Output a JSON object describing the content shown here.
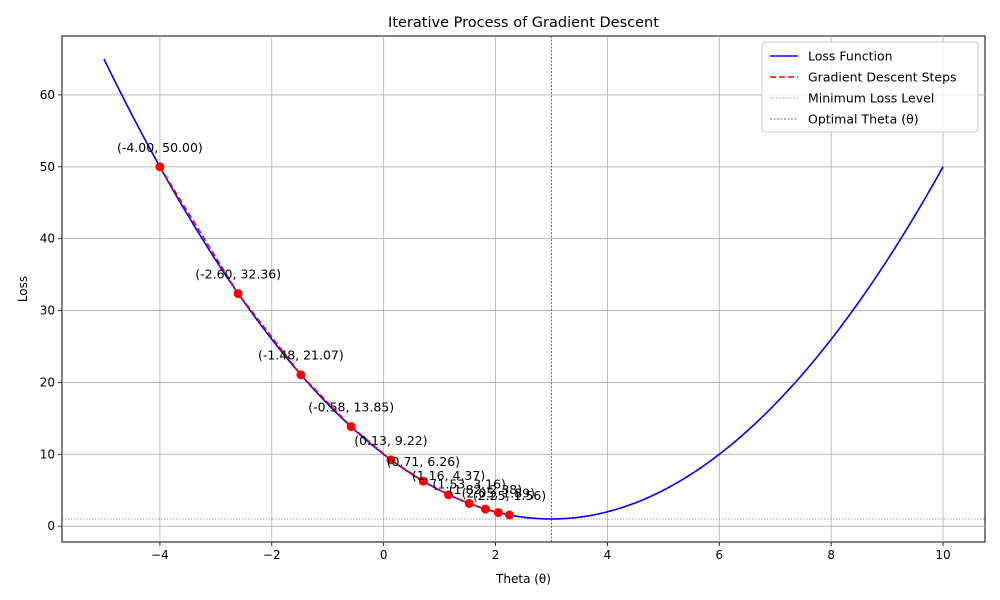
{
  "chart_data": {
    "type": "line",
    "title": "Iterative Process of Gradient Descent",
    "xlabel": "Theta (θ)",
    "ylabel": "Loss",
    "xlim": [
      -5.75,
      10.75
    ],
    "ylim": [
      -2.2,
      68.2
    ],
    "xticks": [
      -4,
      -2,
      0,
      2,
      4,
      6,
      8,
      10
    ],
    "yticks": [
      0,
      10,
      20,
      30,
      40,
      50,
      60
    ],
    "grid": true,
    "legend_position": "top-right",
    "series": [
      {
        "name": "Loss Function",
        "kind": "curve",
        "formula": "(theta - 3)^2 + 1",
        "x_range": [
          -5,
          10
        ],
        "color": "#0000ff",
        "line_style": "solid"
      },
      {
        "name": "Gradient Descent Steps",
        "kind": "steps",
        "color": "#ff0000",
        "line_style": "dashed",
        "marker_color": "#ff0000",
        "points": [
          {
            "x": -4.0,
            "y": 50.0,
            "label": "(-4.00, 50.00)"
          },
          {
            "x": -2.6,
            "y": 32.36,
            "label": "(-2.60, 32.36)"
          },
          {
            "x": -1.48,
            "y": 21.07,
            "label": "(-1.48, 21.07)"
          },
          {
            "x": -0.58,
            "y": 13.85,
            "label": "(-0.58, 13.85)"
          },
          {
            "x": 0.13,
            "y": 9.22,
            "label": "(0.13, 9.22)"
          },
          {
            "x": 0.71,
            "y": 6.26,
            "label": "(0.71, 6.26)"
          },
          {
            "x": 1.16,
            "y": 4.37,
            "label": "(1.16, 4.37)"
          },
          {
            "x": 1.53,
            "y": 3.16,
            "label": "(1.53, 3.16)"
          },
          {
            "x": 1.82,
            "y": 2.38,
            "label": "(1.82, 2.38)"
          },
          {
            "x": 2.05,
            "y": 1.89,
            "label": "(2.05, 1.89)"
          },
          {
            "x": 2.25,
            "y": 1.56,
            "label": "(2.25, 1.56)"
          }
        ]
      },
      {
        "name": "Minimum Loss Level",
        "kind": "hline",
        "y": 1,
        "color": "#808080",
        "line_style": "dotted"
      },
      {
        "name": "Optimal Theta (θ)",
        "kind": "vline",
        "x": 3,
        "color": "#008000",
        "line_style": "dashed"
      }
    ]
  }
}
